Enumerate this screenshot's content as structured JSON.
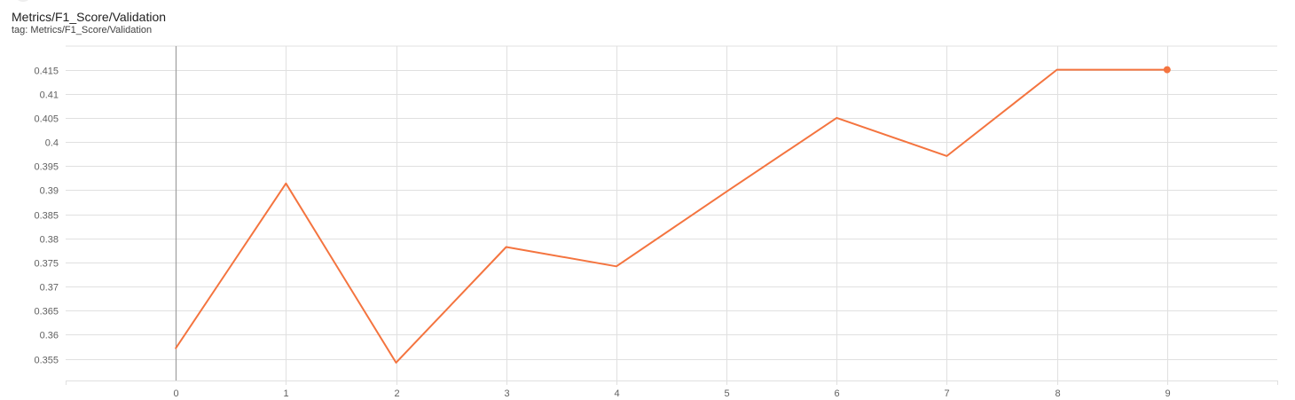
{
  "card": {
    "title": "Metrics/F1_Score/Validation",
    "tag_label": "tag: Metrics/F1_Score/Validation"
  },
  "colors": {
    "series": "#f4743f",
    "grid": "#e0e0e0",
    "zero_axis": "#9e9e9e",
    "tick_text": "#616161"
  },
  "chart_data": {
    "type": "line",
    "x": [
      0,
      1,
      2,
      3,
      4,
      5,
      6,
      7,
      8,
      9
    ],
    "series": [
      {
        "values": [
          0.3572,
          0.3914,
          0.3542,
          0.3782,
          0.3742,
          0.3897,
          0.405,
          0.3971,
          0.415,
          0.415
        ]
      }
    ],
    "xticks": [
      "0",
      "1",
      "2",
      "3",
      "4",
      "5",
      "6",
      "7",
      "8",
      "9"
    ],
    "yticks": [
      "0.355",
      "0.36",
      "0.365",
      "0.37",
      "0.375",
      "0.38",
      "0.385",
      "0.39",
      "0.395",
      "0.4",
      "0.405",
      "0.41",
      "0.415"
    ],
    "xlim": [
      -1,
      10
    ],
    "ylim": [
      0.3505,
      0.4199
    ],
    "grid": true,
    "marker_on_last": true
  }
}
